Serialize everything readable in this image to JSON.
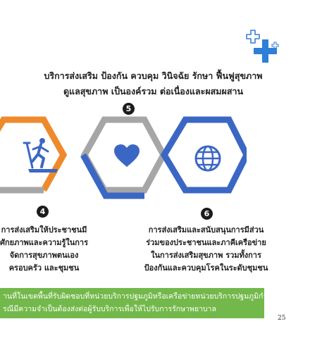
{
  "heading": {
    "line1": "บริการส่งเสริม ป้องกัน ควบคุม วินิจฉัย รักษา ฟื้นฟูสุขภาพ",
    "line2": "ดูแลสุขภาพ เป็นองค์รวม ต่อเนื่องและผสมผสาน"
  },
  "items": [
    {
      "number": "5",
      "icon": "heart-icon"
    },
    {
      "number": "4",
      "icon": "treadmill-runner-icon",
      "lines": [
        "การส่งเสริมให้ประชาชนมี",
        "ศักยภาพและความรู้ในการ",
        "จัดการสุขภาพตนเอง",
        "ครอบครัว และชุมชน"
      ]
    },
    {
      "number": "6",
      "icon": "globe-icon",
      "lines": [
        "การส่งเสริมและสนับสนุนการมีส่วน",
        "ร่วมของประชาชนและภาคีเครือข่าย",
        "ในการส่งเสริมสุขภาพ รวมทั้งการ",
        "ป้องกันและควบคุมโรคในระดับชุมชน"
      ]
    }
  ],
  "banner": {
    "line1": "านที่ในเขตพื้นที่รับผิดชอบที่หน่วยบริการปฐมภูมิหรือเครือข่ายหน่วยบริการปฐมภูมิกำหนด",
    "line2": "รณีมีความจำเป็นต้องส่งต่อผู้รับบริการเพื่อให้ไปรับการรักษาพยาบาล"
  },
  "page_number": "25",
  "colors": {
    "orange": "#ee8a2c",
    "gray": "#a6a6a6",
    "blue": "#3b67c4",
    "green": "#73b84a"
  }
}
